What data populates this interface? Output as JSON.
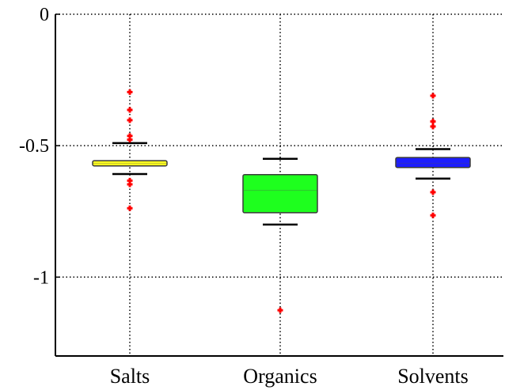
{
  "chart_data": {
    "type": "box",
    "categories": [
      "Salts",
      "Organics",
      "Solvents"
    ],
    "ylim": [
      -1.3,
      0
    ],
    "yticks": [
      0,
      -0.5,
      -1
    ],
    "ytick_labels": [
      "0",
      "-0.5",
      "-1"
    ],
    "grid": true,
    "title": "",
    "xlabel": "",
    "ylabel": "",
    "series": [
      {
        "category": "Salts",
        "q1": -0.577,
        "median": -0.567,
        "q3": -0.557,
        "whisker_low": -0.608,
        "whisker_high": -0.49,
        "outliers": [
          -0.296,
          -0.364,
          -0.403,
          -0.463,
          -0.477,
          -0.633,
          -0.647,
          -0.738
        ],
        "color": "#ffff1e"
      },
      {
        "category": "Organics",
        "q1": -0.755,
        "median": -0.67,
        "q3": -0.61,
        "whisker_low": -0.8,
        "whisker_high": -0.55,
        "outliers": [
          -1.126
        ],
        "color": "#1eff1e"
      },
      {
        "category": "Solvents",
        "q1": -0.583,
        "median": -0.567,
        "q3": -0.545,
        "whisker_low": -0.625,
        "whisker_high": -0.513,
        "outliers": [
          -0.31,
          -0.408,
          -0.427,
          -0.677,
          -0.765
        ],
        "color": "#1e1eff"
      }
    ],
    "outlier_color": "#ff0000"
  }
}
